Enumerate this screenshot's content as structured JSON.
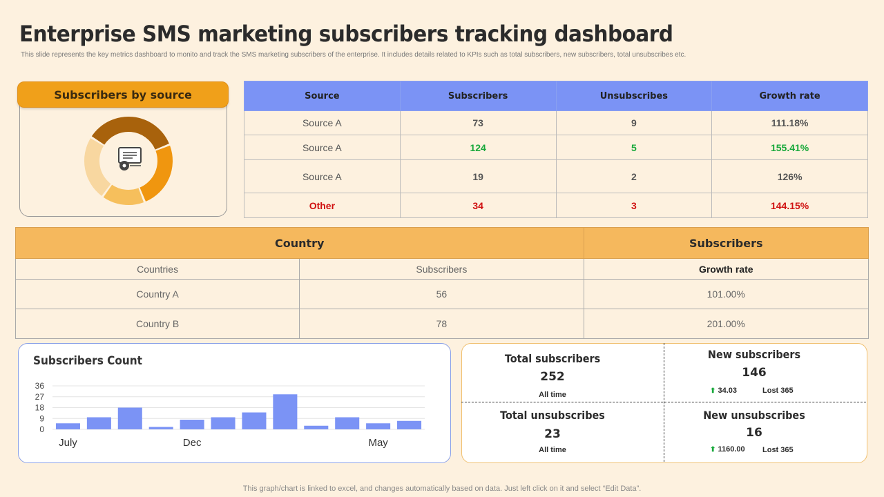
{
  "header": {
    "title": "Enterprise SMS marketing subscribers tracking dashboard",
    "subtitle": "This slide represents the key metrics dashboard to monito and track the SMS marketing subscribers of the enterprise. It includes details related to KPIs such as total subscribers, new subscribers, total unsubscribes etc."
  },
  "source_card": {
    "title": "Subscribers by source",
    "icon": "monitor-gear-icon",
    "slices": [
      {
        "value": 35,
        "color": "#a8620c"
      },
      {
        "value": 25,
        "color": "#f0960f"
      },
      {
        "value": 16,
        "color": "#f6bf5c"
      },
      {
        "value": 24,
        "color": "#f8d7a0"
      }
    ]
  },
  "source_table": {
    "headers": [
      "Source",
      "Subscribers",
      "Unsubscribes",
      "Growth rate"
    ],
    "rows": [
      {
        "source": "Source A",
        "subscribers": "73",
        "unsubscribes": "9",
        "growth": "111.18%"
      },
      {
        "source": "Source A",
        "subscribers": "124",
        "unsubscribes": "5",
        "growth": "155.41%"
      },
      {
        "source": "Source A",
        "subscribers": "19",
        "unsubscribes": "2",
        "growth": "126%"
      },
      {
        "source": "Other",
        "subscribers": "34",
        "unsubscribes": "3",
        "growth": "144.15%"
      }
    ]
  },
  "country_table": {
    "header_country": "Country",
    "header_subscribers": "Subscribers",
    "sub_headers": [
      "Countries",
      "Subscribers",
      "Growth rate"
    ],
    "rows": [
      {
        "country": "Country A",
        "subscribers": "56",
        "growth": "101.00%"
      },
      {
        "country": "Country B",
        "subscribers": "78",
        "growth": "201.00%"
      }
    ]
  },
  "chart_data": {
    "type": "bar",
    "title": "Subscribers Count",
    "xlabel": "",
    "ylabel": "",
    "ylim": [
      0,
      36
    ],
    "yticks": [
      0,
      9,
      18,
      27,
      36
    ],
    "x_tick_labels": [
      {
        "label": "July",
        "index": 0
      },
      {
        "label": "Dec",
        "index": 4
      },
      {
        "label": "May",
        "index": 10
      }
    ],
    "values": [
      5,
      10,
      18,
      2,
      8,
      10,
      14,
      29,
      3,
      10,
      5,
      7
    ],
    "color": "#7b93f5",
    "grid": true
  },
  "stats": {
    "total_subscribers": {
      "label": "Total subscribers",
      "value": "252",
      "note": "All time"
    },
    "new_subscribers": {
      "label": "New subscribers",
      "value": "146",
      "change": "34.03",
      "lost": "Lost 365"
    },
    "total_unsubscribes": {
      "label": "Total unsubscribes",
      "value": "23",
      "note": "All time"
    },
    "new_unsubscribes": {
      "label": "New unsubscribes",
      "value": "16",
      "change": "1160.00",
      "lost": "Lost 365"
    }
  },
  "footer": "This graph/chart is linked to excel, and changes automatically based on data. Just left click on it and select “Edit Data”."
}
